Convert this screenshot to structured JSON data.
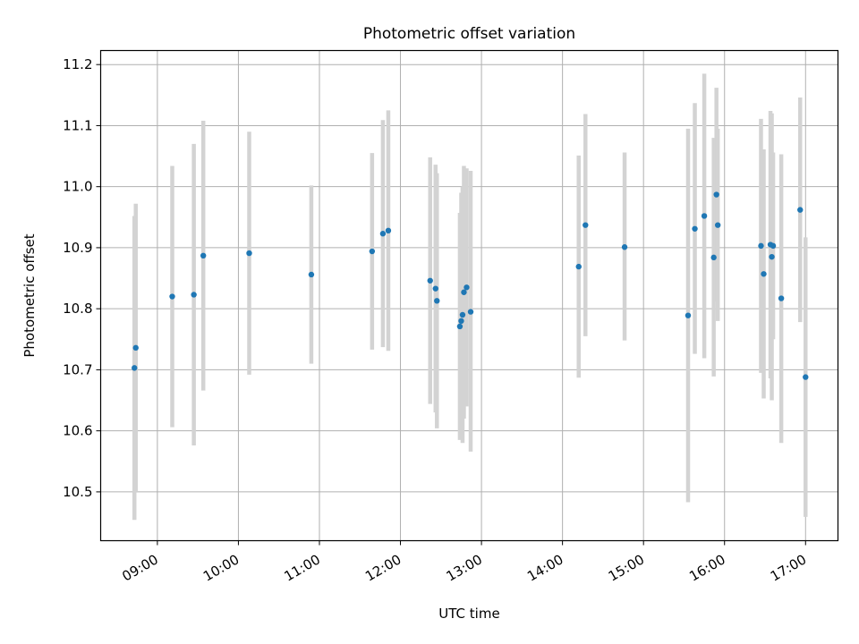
{
  "chart_data": {
    "type": "scatter",
    "title": "Photometric offset variation",
    "xlabel": "UTC time",
    "ylabel": "Photometric offset",
    "x_ticks": [
      "09:00",
      "10:00",
      "11:00",
      "12:00",
      "13:00",
      "14:00",
      "15:00",
      "16:00",
      "17:00"
    ],
    "y_ticks": [
      "10.5",
      "10.6",
      "10.7",
      "10.8",
      "10.9",
      "11.0",
      "11.1",
      "11.2"
    ],
    "xlim": [
      "08:18",
      "17:24"
    ],
    "ylim": [
      10.42,
      11.223
    ],
    "grid": true,
    "colors": {
      "point": "#1f77b4",
      "errorbar": "#d3d3d3",
      "grid": "#b0b0b0"
    },
    "points": [
      {
        "x": "08:43",
        "y": 10.703,
        "lo": 10.454,
        "hi": 10.952
      },
      {
        "x": "08:44",
        "y": 10.736,
        "lo": 10.5,
        "hi": 10.972
      },
      {
        "x": "09:11",
        "y": 10.82,
        "lo": 10.606,
        "hi": 11.034
      },
      {
        "x": "09:27",
        "y": 10.823,
        "lo": 10.576,
        "hi": 11.07
      },
      {
        "x": "09:34",
        "y": 10.887,
        "lo": 10.666,
        "hi": 11.108
      },
      {
        "x": "10:08",
        "y": 10.891,
        "lo": 10.692,
        "hi": 11.09
      },
      {
        "x": "10:54",
        "y": 10.856,
        "lo": 10.71,
        "hi": 11.002
      },
      {
        "x": "11:39",
        "y": 10.894,
        "lo": 10.733,
        "hi": 11.055
      },
      {
        "x": "11:47",
        "y": 10.923,
        "lo": 10.737,
        "hi": 11.109
      },
      {
        "x": "11:51",
        "y": 10.928,
        "lo": 10.731,
        "hi": 11.125
      },
      {
        "x": "12:22",
        "y": 10.846,
        "lo": 10.644,
        "hi": 11.048
      },
      {
        "x": "12:26",
        "y": 10.833,
        "lo": 10.63,
        "hi": 11.036
      },
      {
        "x": "12:27",
        "y": 10.813,
        "lo": 10.604,
        "hi": 11.022
      },
      {
        "x": "12:44",
        "y": 10.771,
        "lo": 10.585,
        "hi": 10.957
      },
      {
        "x": "12:45",
        "y": 10.78,
        "lo": 10.59,
        "hi": 10.99
      },
      {
        "x": "12:46",
        "y": 10.79,
        "lo": 10.58,
        "hi": 11.0
      },
      {
        "x": "12:47",
        "y": 10.827,
        "lo": 10.62,
        "hi": 11.034
      },
      {
        "x": "12:49",
        "y": 10.835,
        "lo": 10.64,
        "hi": 11.03
      },
      {
        "x": "12:52",
        "y": 10.795,
        "lo": 10.566,
        "hi": 11.026
      },
      {
        "x": "14:12",
        "y": 10.869,
        "lo": 10.687,
        "hi": 11.051
      },
      {
        "x": "14:17",
        "y": 10.937,
        "lo": 10.755,
        "hi": 11.119
      },
      {
        "x": "14:46",
        "y": 10.901,
        "lo": 10.748,
        "hi": 11.056
      },
      {
        "x": "15:33",
        "y": 10.789,
        "lo": 10.483,
        "hi": 11.095
      },
      {
        "x": "15:38",
        "y": 10.931,
        "lo": 10.726,
        "hi": 11.137
      },
      {
        "x": "15:45",
        "y": 10.952,
        "lo": 10.719,
        "hi": 11.185
      },
      {
        "x": "15:52",
        "y": 10.884,
        "lo": 10.689,
        "hi": 11.08
      },
      {
        "x": "15:54",
        "y": 10.987,
        "lo": 10.812,
        "hi": 11.162
      },
      {
        "x": "15:55",
        "y": 10.937,
        "lo": 10.78,
        "hi": 11.095
      },
      {
        "x": "16:27",
        "y": 10.903,
        "lo": 10.695,
        "hi": 11.111
      },
      {
        "x": "16:29",
        "y": 10.857,
        "lo": 10.653,
        "hi": 11.061
      },
      {
        "x": "16:34",
        "y": 10.905,
        "lo": 10.686,
        "hi": 11.124
      },
      {
        "x": "16:35",
        "y": 10.885,
        "lo": 10.65,
        "hi": 11.12
      },
      {
        "x": "16:36",
        "y": 10.903,
        "lo": 10.75,
        "hi": 11.056
      },
      {
        "x": "16:42",
        "y": 10.817,
        "lo": 10.58,
        "hi": 11.053
      },
      {
        "x": "16:56",
        "y": 10.962,
        "lo": 10.778,
        "hi": 11.146
      },
      {
        "x": "17:00",
        "y": 10.688,
        "lo": 10.459,
        "hi": 10.917
      }
    ]
  }
}
